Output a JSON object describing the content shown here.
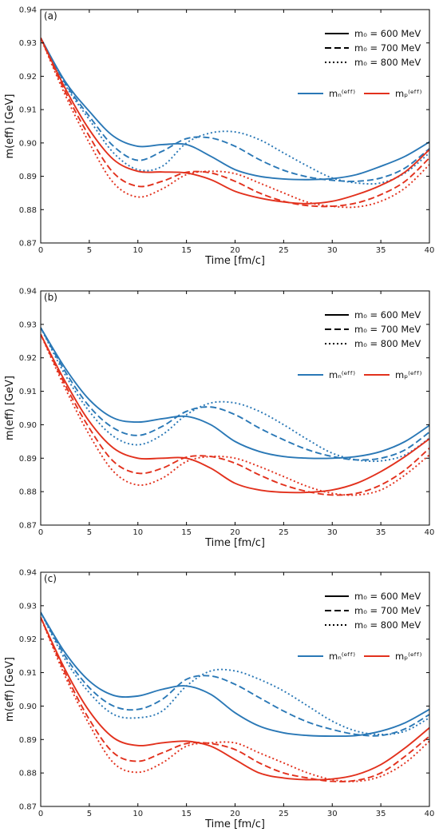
{
  "colors": {
    "neutron": "#2a78b6",
    "proton": "#e2311d",
    "axis": "#000000"
  },
  "legend_text": {
    "m0_600": "m₀ = 600 MeV",
    "m0_700": "m₀ = 700 MeV",
    "m0_800": "m₀ = 800 MeV",
    "mn": "mₙ⁽ᵉᶠᶠ⁾",
    "mp": "mₚ⁽ᵉᶠᶠ⁾"
  },
  "chart_data": [
    {
      "type": "line",
      "panel_label": "(a)",
      "xlabel": "Time [fm/c]",
      "ylabel": "m(eff) [GeV]",
      "xlim": [
        0,
        40
      ],
      "ylim": [
        0.87,
        0.94
      ],
      "xticks": [
        "0",
        "5",
        "10",
        "15",
        "20",
        "25",
        "30",
        "35",
        "40"
      ],
      "yticks": [
        "0.87",
        "0.88",
        "0.89",
        "0.90",
        "0.91",
        "0.92",
        "0.93",
        "0.94"
      ],
      "x": [
        0,
        2.5,
        5,
        7.5,
        10,
        12.5,
        15,
        17.5,
        20,
        22.5,
        25,
        27.5,
        30,
        32.5,
        35,
        37.5,
        40
      ],
      "series": [
        {
          "particle": "n",
          "m0": 600,
          "values": [
            0.9315,
            0.9185,
            0.9095,
            0.902,
            0.899,
            0.8995,
            0.8995,
            0.896,
            0.892,
            0.89,
            0.8892,
            0.889,
            0.8893,
            0.8905,
            0.893,
            0.896,
            0.9003
          ]
        },
        {
          "particle": "n",
          "m0": 700,
          "values": [
            0.9315,
            0.918,
            0.908,
            0.899,
            0.8948,
            0.8975,
            0.9013,
            0.9015,
            0.899,
            0.895,
            0.8918,
            0.8898,
            0.8888,
            0.8885,
            0.8895,
            0.8925,
            0.8983
          ]
        },
        {
          "particle": "n",
          "m0": 800,
          "values": [
            0.9315,
            0.9175,
            0.907,
            0.897,
            0.892,
            0.893,
            0.9,
            0.903,
            0.9033,
            0.901,
            0.897,
            0.893,
            0.8895,
            0.888,
            0.888,
            0.891,
            0.897
          ]
        },
        {
          "particle": "p",
          "m0": 600,
          "values": [
            0.9315,
            0.9165,
            0.904,
            0.895,
            0.8915,
            0.8913,
            0.891,
            0.889,
            0.8855,
            0.8835,
            0.8823,
            0.8818,
            0.8825,
            0.8845,
            0.8873,
            0.8913,
            0.898
          ]
        },
        {
          "particle": "p",
          "m0": 700,
          "values": [
            0.9315,
            0.9155,
            0.902,
            0.891,
            0.887,
            0.8885,
            0.8912,
            0.891,
            0.8885,
            0.885,
            0.8825,
            0.8812,
            0.881,
            0.882,
            0.8845,
            0.8885,
            0.8955
          ]
        },
        {
          "particle": "p",
          "m0": 800,
          "values": [
            0.9315,
            0.9145,
            0.9,
            0.888,
            0.8838,
            0.8862,
            0.8905,
            0.8915,
            0.8908,
            0.888,
            0.885,
            0.8822,
            0.881,
            0.8808,
            0.8825,
            0.8865,
            0.8935
          ]
        }
      ]
    },
    {
      "type": "line",
      "panel_label": "(b)",
      "xlabel": "Time [fm/c]",
      "ylabel": "m(eff) [GeV]",
      "xlim": [
        0,
        40
      ],
      "ylim": [
        0.87,
        0.94
      ],
      "xticks": [
        "0",
        "5",
        "10",
        "15",
        "20",
        "25",
        "30",
        "35",
        "40"
      ],
      "yticks": [
        "0.87",
        "0.88",
        "0.89",
        "0.90",
        "0.91",
        "0.92",
        "0.93",
        "0.94"
      ],
      "x": [
        0,
        2.5,
        5,
        7.5,
        10,
        12.5,
        15,
        17.5,
        20,
        22.5,
        25,
        27.5,
        30,
        32.5,
        35,
        37.5,
        40
      ],
      "series": [
        {
          "particle": "n",
          "m0": 600,
          "values": [
            0.929,
            0.917,
            0.9075,
            0.902,
            0.9008,
            0.9018,
            0.9025,
            0.9,
            0.895,
            0.892,
            0.8905,
            0.89,
            0.89,
            0.8905,
            0.892,
            0.895,
            0.8998
          ]
        },
        {
          "particle": "n",
          "m0": 700,
          "values": [
            0.929,
            0.916,
            0.9055,
            0.899,
            0.8968,
            0.8995,
            0.904,
            0.9053,
            0.903,
            0.899,
            0.8955,
            0.8925,
            0.8905,
            0.8895,
            0.89,
            0.8925,
            0.8978
          ]
        },
        {
          "particle": "n",
          "m0": 800,
          "values": [
            0.929,
            0.915,
            0.904,
            0.8965,
            0.894,
            0.897,
            0.903,
            0.9065,
            0.9065,
            0.904,
            0.9,
            0.8955,
            0.8915,
            0.8895,
            0.8892,
            0.891,
            0.896
          ]
        },
        {
          "particle": "p",
          "m0": 600,
          "values": [
            0.927,
            0.913,
            0.901,
            0.893,
            0.89,
            0.89,
            0.89,
            0.887,
            0.8825,
            0.8805,
            0.8798,
            0.8798,
            0.8805,
            0.8825,
            0.886,
            0.8905,
            0.8958
          ]
        },
        {
          "particle": "p",
          "m0": 700,
          "values": [
            0.927,
            0.912,
            0.899,
            0.889,
            0.8855,
            0.887,
            0.8903,
            0.8905,
            0.8885,
            0.885,
            0.882,
            0.88,
            0.879,
            0.8795,
            0.882,
            0.8865,
            0.893
          ]
        },
        {
          "particle": "p",
          "m0": 800,
          "values": [
            0.927,
            0.911,
            0.897,
            0.886,
            0.882,
            0.884,
            0.889,
            0.8905,
            0.89,
            0.8875,
            0.8845,
            0.8815,
            0.8795,
            0.879,
            0.8805,
            0.885,
            0.891
          ]
        }
      ]
    },
    {
      "type": "line",
      "panel_label": "(c)",
      "xlabel": "Time [fm/c]",
      "ylabel": "m(eff) [GeV]",
      "xlim": [
        0,
        40
      ],
      "ylim": [
        0.87,
        0.94
      ],
      "xticks": [
        "0",
        "5",
        "10",
        "15",
        "20",
        "25",
        "30",
        "35",
        "40"
      ],
      "yticks": [
        "0.87",
        "0.88",
        "0.89",
        "0.90",
        "0.91",
        "0.92",
        "0.93",
        "0.94"
      ],
      "x": [
        0,
        2.5,
        5,
        7.5,
        10,
        12.5,
        15,
        17.5,
        20,
        22.5,
        25,
        27.5,
        30,
        32.5,
        35,
        37.5,
        40
      ],
      "series": [
        {
          "particle": "n",
          "m0": 600,
          "values": [
            0.928,
            0.916,
            0.9075,
            0.9032,
            0.903,
            0.905,
            0.906,
            0.9035,
            0.898,
            0.894,
            0.892,
            0.8912,
            0.891,
            0.8912,
            0.8925,
            0.895,
            0.899
          ]
        },
        {
          "particle": "n",
          "m0": 700,
          "values": [
            0.928,
            0.915,
            0.9055,
            0.9,
            0.899,
            0.902,
            0.908,
            0.909,
            0.9065,
            0.9025,
            0.8985,
            0.8952,
            0.893,
            0.8915,
            0.8912,
            0.8932,
            0.8975
          ]
        },
        {
          "particle": "n",
          "m0": 800,
          "values": [
            0.928,
            0.914,
            0.904,
            0.8975,
            0.8965,
            0.8985,
            0.906,
            0.9105,
            0.9105,
            0.908,
            0.9045,
            0.9,
            0.8955,
            0.8925,
            0.8915,
            0.8925,
            0.8965
          ]
        },
        {
          "particle": "p",
          "m0": 600,
          "values": [
            0.9265,
            0.911,
            0.8985,
            0.8905,
            0.8882,
            0.889,
            0.8895,
            0.888,
            0.884,
            0.88,
            0.8785,
            0.878,
            0.8782,
            0.8795,
            0.8825,
            0.8875,
            0.8935
          ]
        },
        {
          "particle": "p",
          "m0": 700,
          "values": [
            0.9265,
            0.91,
            0.896,
            0.886,
            0.8835,
            0.886,
            0.8888,
            0.8888,
            0.887,
            0.883,
            0.88,
            0.8785,
            0.8775,
            0.8778,
            0.88,
            0.885,
            0.891
          ]
        },
        {
          "particle": "p",
          "m0": 800,
          "values": [
            0.9265,
            0.909,
            0.8945,
            0.883,
            0.8802,
            0.883,
            0.888,
            0.889,
            0.889,
            0.886,
            0.883,
            0.88,
            0.878,
            0.8775,
            0.879,
            0.883,
            0.8895
          ]
        }
      ]
    }
  ]
}
